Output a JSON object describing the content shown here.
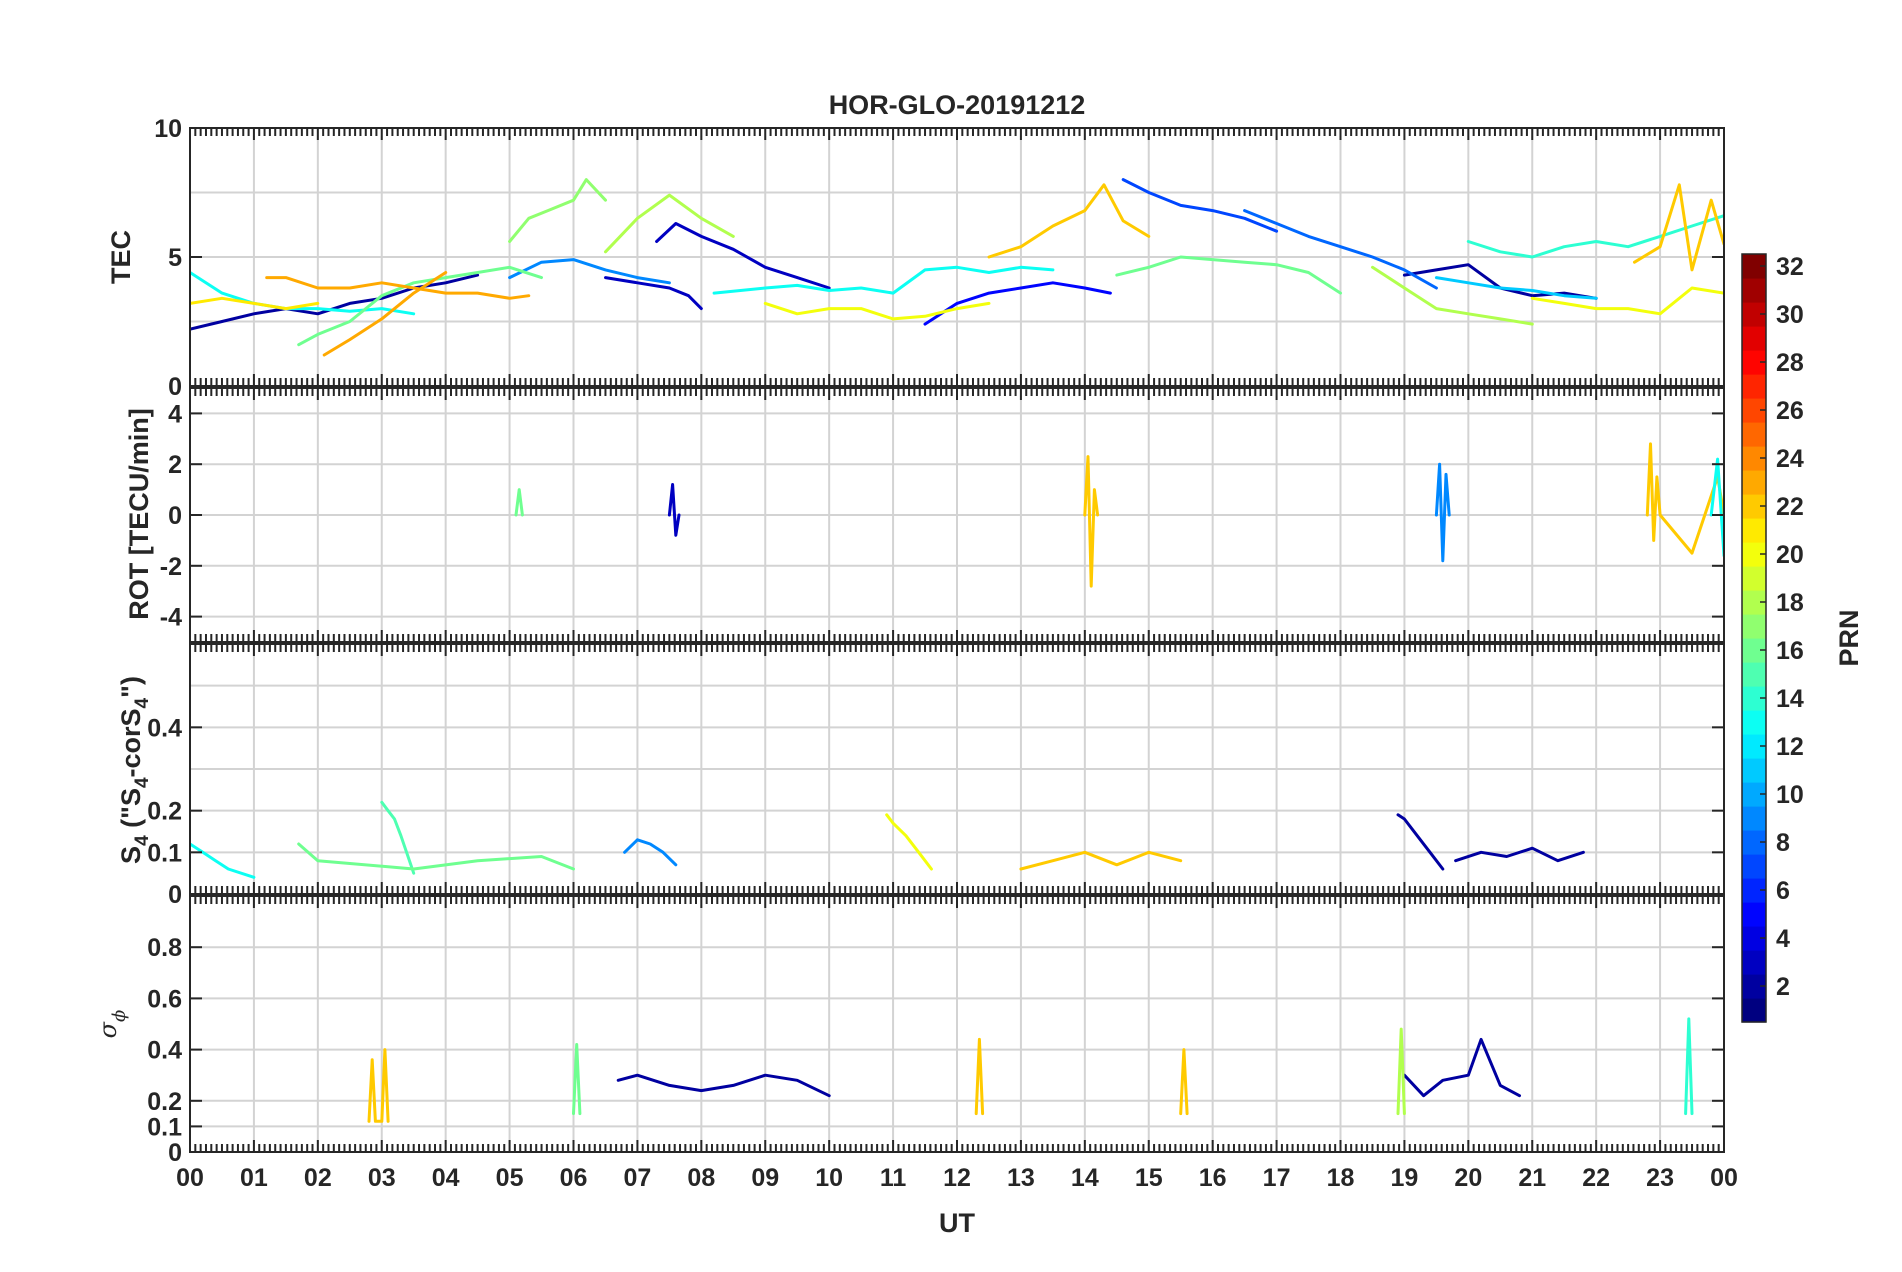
{
  "figure_title": "HOR-GLO-20191212",
  "x_axis": {
    "label": "UT",
    "ticks": [
      "00",
      "01",
      "02",
      "03",
      "04",
      "05",
      "06",
      "07",
      "08",
      "09",
      "10",
      "11",
      "12",
      "13",
      "14",
      "15",
      "16",
      "17",
      "18",
      "19",
      "20",
      "21",
      "22",
      "23",
      "00"
    ]
  },
  "colorbar": {
    "label": "PRN",
    "colormap": "jet",
    "range": [
      1,
      32
    ],
    "ticks": [
      "2",
      "4",
      "6",
      "8",
      "10",
      "12",
      "14",
      "16",
      "18",
      "20",
      "22",
      "24",
      "26",
      "28",
      "30",
      "32"
    ]
  },
  "panels": {
    "tec": {
      "ylabel": "TEC",
      "ylim": [
        0,
        10
      ],
      "yticks": [
        "0",
        "5",
        "10"
      ]
    },
    "rot": {
      "ylabel": "ROT [TECU/min]",
      "ylim": [
        -5,
        5
      ],
      "yticks": [
        "-4",
        "-2",
        "0",
        "2",
        "4"
      ]
    },
    "s4": {
      "ylabel_main": "S",
      "ylabel_sub": "4",
      "ylabel_paren": " (\"S",
      "ylabel_sub2": "4",
      "ylabel_mid": "-corS",
      "ylabel_sub3": "4",
      "ylabel_end": "\")",
      "ylim": [
        0,
        0.6
      ],
      "yticks": [
        "0",
        "0.1",
        "0.2",
        "0.4"
      ]
    },
    "sigphi": {
      "ylabel_main": "σ",
      "ylabel_sub": "ϕ",
      "ylim": [
        0,
        1
      ],
      "yticks": [
        "0",
        "0.1",
        "0.2",
        "0.4",
        "0.6",
        "0.8"
      ]
    }
  },
  "chart_data": [
    {
      "type": "line",
      "title": "HOR-GLO-20191212",
      "ylabel": "TEC",
      "xlabel": "UT",
      "xlim": [
        0,
        24
      ],
      "ylim": [
        0,
        10
      ],
      "grid": true,
      "series": [
        {
          "name": "2",
          "x": [
            0.0,
            0.5,
            1.0,
            1.5,
            2.0,
            2.5,
            3.0,
            3.5,
            4.0,
            4.5
          ],
          "y": [
            2.2,
            2.5,
            2.8,
            3.0,
            2.8,
            3.2,
            3.4,
            3.8,
            4.0,
            4.3
          ]
        },
        {
          "name": "3",
          "x": [
            6.5,
            7.0,
            7.5,
            7.8,
            8.0
          ],
          "y": [
            4.2,
            4.0,
            3.8,
            3.5,
            3.0
          ]
        },
        {
          "name": "3",
          "x": [
            7.3,
            7.6,
            8.0,
            8.5,
            9.0,
            9.5,
            10.0
          ],
          "y": [
            5.6,
            6.3,
            5.8,
            5.3,
            4.6,
            4.2,
            3.8
          ]
        },
        {
          "name": "2",
          "x": [
            19.0,
            19.5,
            20.0,
            20.5,
            21.0,
            21.5,
            22.0
          ],
          "y": [
            4.3,
            4.5,
            4.7,
            3.8,
            3.5,
            3.6,
            3.4
          ]
        },
        {
          "name": "5",
          "x": [
            11.5,
            12.0,
            12.5,
            13.0,
            13.5,
            14.0,
            14.4
          ],
          "y": [
            2.4,
            3.2,
            3.6,
            3.8,
            4.0,
            3.8,
            3.6
          ]
        },
        {
          "name": "7",
          "x": [
            14.6,
            15.0,
            15.5,
            16.0,
            16.5,
            17.0
          ],
          "y": [
            8.0,
            7.5,
            7.0,
            6.8,
            6.5,
            6.0
          ]
        },
        {
          "name": "8",
          "x": [
            16.5,
            17.0,
            17.5,
            18.0,
            18.5,
            19.0,
            19.5
          ],
          "y": [
            6.8,
            6.3,
            5.8,
            5.4,
            5.0,
            4.5,
            3.8
          ]
        },
        {
          "name": "9",
          "x": [
            5.0,
            5.5,
            6.0,
            6.5,
            7.0,
            7.5
          ],
          "y": [
            4.2,
            4.8,
            4.9,
            4.5,
            4.2,
            4.0
          ]
        },
        {
          "name": "11",
          "x": [
            19.5,
            20.0,
            20.5,
            21.0,
            21.5,
            22.0
          ],
          "y": [
            4.2,
            4.0,
            3.8,
            3.7,
            3.5,
            3.4
          ]
        },
        {
          "name": "13",
          "x": [
            0.0,
            0.5,
            1.0,
            1.5,
            2.0,
            2.5,
            3.0,
            3.5
          ],
          "y": [
            4.4,
            3.6,
            3.2,
            3.0,
            3.0,
            2.9,
            3.0,
            2.8
          ]
        },
        {
          "name": "13",
          "x": [
            8.2,
            9.0,
            9.5,
            10.0,
            10.5,
            11.0,
            11.5,
            12.0,
            12.5,
            13.0,
            13.5
          ],
          "y": [
            3.6,
            3.8,
            3.9,
            3.7,
            3.8,
            3.6,
            4.5,
            4.6,
            4.4,
            4.6,
            4.5
          ]
        },
        {
          "name": "14",
          "x": [
            20.0,
            20.5,
            21.0,
            21.5,
            22.0,
            22.5,
            23.0,
            23.5,
            24.0
          ],
          "y": [
            5.6,
            5.2,
            5.0,
            5.4,
            5.6,
            5.4,
            5.8,
            6.2,
            6.6
          ]
        },
        {
          "name": "16",
          "x": [
            1.7,
            2.0,
            2.5,
            3.0,
            3.5,
            4.0,
            4.5,
            5.0,
            5.5
          ],
          "y": [
            1.6,
            2.0,
            2.5,
            3.5,
            4.0,
            4.2,
            4.4,
            4.6,
            4.2
          ]
        },
        {
          "name": "16",
          "x": [
            14.5,
            15.0,
            15.5,
            16.0,
            16.5,
            17.0,
            17.5,
            18.0
          ],
          "y": [
            4.3,
            4.6,
            5.0,
            4.9,
            4.8,
            4.7,
            4.4,
            3.6
          ]
        },
        {
          "name": "17",
          "x": [
            5.0,
            5.3,
            5.6,
            6.0,
            6.2,
            6.5
          ],
          "y": [
            5.6,
            6.5,
            6.8,
            7.2,
            8.0,
            7.2
          ]
        },
        {
          "name": "18",
          "x": [
            6.5,
            7.0,
            7.5,
            8.0,
            8.5
          ],
          "y": [
            5.2,
            6.5,
            7.4,
            6.5,
            5.8
          ]
        },
        {
          "name": "18",
          "x": [
            18.5,
            19.0,
            19.5,
            20.0,
            20.5,
            21.0
          ],
          "y": [
            4.6,
            3.8,
            3.0,
            2.8,
            2.6,
            2.4
          ]
        },
        {
          "name": "20",
          "x": [
            9.0,
            9.5,
            10.0,
            10.5,
            11.0,
            11.5,
            12.0,
            12.5
          ],
          "y": [
            3.2,
            2.8,
            3.0,
            3.0,
            2.6,
            2.7,
            3.0,
            3.2
          ]
        },
        {
          "name": "20",
          "x": [
            21.0,
            21.5,
            22.0,
            22.5,
            23.0,
            23.5,
            24.0
          ],
          "y": [
            3.4,
            3.2,
            3.0,
            3.0,
            2.8,
            3.8,
            3.6
          ]
        },
        {
          "name": "21",
          "x": [
            0.0,
            0.5,
            1.0,
            1.5,
            2.0
          ],
          "y": [
            3.2,
            3.4,
            3.2,
            3.0,
            3.2
          ]
        },
        {
          "name": "22",
          "x": [
            12.5,
            13.0,
            13.5,
            14.0,
            14.3,
            14.6,
            15.0
          ],
          "y": [
            5.0,
            5.4,
            6.2,
            6.8,
            7.8,
            6.4,
            5.8
          ]
        },
        {
          "name": "22",
          "x": [
            22.6,
            23.0,
            23.3,
            23.5,
            23.8,
            24.0
          ],
          "y": [
            4.8,
            5.4,
            7.8,
            4.5,
            7.2,
            5.5
          ]
        },
        {
          "name": "23",
          "x": [
            1.2,
            1.5,
            2.0,
            2.5,
            3.0,
            3.5,
            4.0,
            4.5,
            5.0,
            5.3
          ],
          "y": [
            4.2,
            4.2,
            3.8,
            3.8,
            4.0,
            3.8,
            3.6,
            3.6,
            3.4,
            3.5
          ]
        },
        {
          "name": "23",
          "x": [
            2.1,
            2.5,
            3.0,
            3.5,
            4.0
          ],
          "y": [
            1.2,
            1.8,
            2.6,
            3.6,
            4.4
          ]
        }
      ]
    },
    {
      "type": "line",
      "ylabel": "ROT [TECU/min]",
      "xlim": [
        0,
        24
      ],
      "ylim": [
        -5,
        5
      ],
      "grid": true,
      "series": [
        {
          "name": "3",
          "x": [
            7.5,
            7.55,
            7.6,
            7.65
          ],
          "y": [
            0.0,
            1.2,
            -0.8,
            0.0
          ]
        },
        {
          "name": "9",
          "x": [
            19.5,
            19.55,
            19.6,
            19.65,
            19.7
          ],
          "y": [
            0.0,
            2.0,
            -1.8,
            1.6,
            0.0
          ]
        },
        {
          "name": "22",
          "x": [
            14.0,
            14.05,
            14.1,
            14.15,
            14.2
          ],
          "y": [
            0.0,
            2.3,
            -2.8,
            1.0,
            0.0
          ]
        },
        {
          "name": "22",
          "x": [
            22.8,
            22.85,
            22.9,
            22.95,
            23.0,
            23.5,
            23.9,
            24.0
          ],
          "y": [
            0.0,
            2.8,
            -1.0,
            1.5,
            0.0,
            -1.5,
            1.5,
            0.0
          ]
        },
        {
          "name": "13",
          "x": [
            23.8,
            23.9,
            24.0
          ],
          "y": [
            0.0,
            2.2,
            -1.6
          ]
        },
        {
          "name": "16",
          "x": [
            5.1,
            5.15,
            5.2
          ],
          "y": [
            0.0,
            1.0,
            0.0
          ]
        }
      ]
    },
    {
      "type": "line",
      "ylabel": "S4 (\"S4-corS4\")",
      "xlim": [
        0,
        24
      ],
      "ylim": [
        0,
        0.6
      ],
      "grid": true,
      "series": [
        {
          "name": "15",
          "x": [
            3.0,
            3.1,
            3.2,
            3.3,
            3.5
          ],
          "y": [
            0.22,
            0.2,
            0.18,
            0.14,
            0.05
          ]
        },
        {
          "name": "13",
          "x": [
            0.0,
            0.2,
            0.4,
            0.6,
            1.0
          ],
          "y": [
            0.12,
            0.1,
            0.08,
            0.06,
            0.04
          ]
        },
        {
          "name": "20",
          "x": [
            10.9,
            11.0,
            11.2,
            11.4,
            11.6
          ],
          "y": [
            0.19,
            0.17,
            0.14,
            0.1,
            0.06
          ]
        },
        {
          "name": "2",
          "x": [
            18.9,
            19.0,
            19.2,
            19.4,
            19.6
          ],
          "y": [
            0.19,
            0.18,
            0.14,
            0.1,
            0.06
          ]
        },
        {
          "name": "2",
          "x": [
            19.8,
            20.2,
            20.6,
            21.0,
            21.4,
            21.8
          ],
          "y": [
            0.08,
            0.1,
            0.09,
            0.11,
            0.08,
            0.1
          ]
        },
        {
          "name": "9",
          "x": [
            6.8,
            7.0,
            7.2,
            7.4,
            7.6
          ],
          "y": [
            0.1,
            0.13,
            0.12,
            0.1,
            0.07
          ]
        },
        {
          "name": "22",
          "x": [
            13.0,
            13.5,
            14.0,
            14.5,
            15.0,
            15.5
          ],
          "y": [
            0.06,
            0.08,
            0.1,
            0.07,
            0.1,
            0.08
          ]
        },
        {
          "name": "16",
          "x": [
            1.7,
            2.0,
            3.5,
            4.5,
            5.5,
            6.0
          ],
          "y": [
            0.12,
            0.08,
            0.06,
            0.08,
            0.09,
            0.06
          ]
        }
      ]
    },
    {
      "type": "line",
      "ylabel": "σϕ",
      "xlabel": "UT",
      "xlim": [
        0,
        24
      ],
      "ylim": [
        0,
        1
      ],
      "grid": true,
      "series": [
        {
          "name": "2",
          "x": [
            6.7,
            7.0,
            7.5,
            8.0,
            8.5,
            9.0,
            9.5,
            10.0
          ],
          "y": [
            0.28,
            0.3,
            0.26,
            0.24,
            0.26,
            0.3,
            0.28,
            0.22
          ]
        },
        {
          "name": "2",
          "x": [
            19.0,
            19.3,
            19.6,
            20.0,
            20.2,
            20.5,
            20.8
          ],
          "y": [
            0.3,
            0.22,
            0.28,
            0.3,
            0.44,
            0.26,
            0.22
          ]
        },
        {
          "name": "14",
          "x": [
            23.4,
            23.45,
            23.5
          ],
          "y": [
            0.15,
            0.52,
            0.15
          ]
        },
        {
          "name": "18",
          "x": [
            18.9,
            18.95,
            19.0
          ],
          "y": [
            0.15,
            0.48,
            0.15
          ]
        },
        {
          "name": "22",
          "x": [
            2.8,
            2.85,
            2.9,
            3.0,
            3.05,
            3.1
          ],
          "y": [
            0.12,
            0.36,
            0.12,
            0.12,
            0.4,
            0.12
          ]
        },
        {
          "name": "22",
          "x": [
            12.3,
            12.35,
            12.4
          ],
          "y": [
            0.15,
            0.44,
            0.15
          ]
        },
        {
          "name": "22",
          "x": [
            15.5,
            15.55,
            15.6
          ],
          "y": [
            0.15,
            0.4,
            0.15
          ]
        },
        {
          "name": "16",
          "x": [
            6.0,
            6.05,
            6.1
          ],
          "y": [
            0.15,
            0.42,
            0.15
          ]
        }
      ]
    }
  ]
}
